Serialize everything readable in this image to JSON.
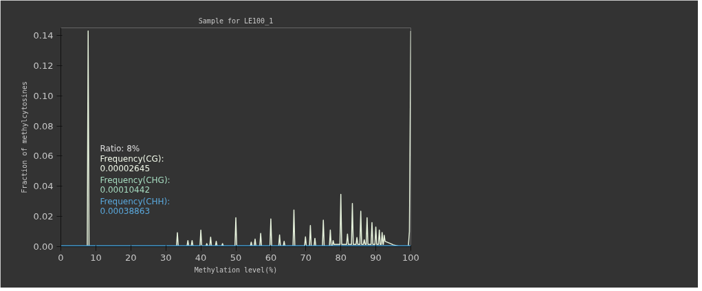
{
  "chart_data": {
    "type": "line",
    "title": "Sample for LE100_1",
    "xlabel": "Methylation level(%)",
    "ylabel": "Fraction of methylcytosines",
    "xlim": [
      0,
      100
    ],
    "ylim": [
      0,
      0.145
    ],
    "xticks": [
      0,
      10,
      20,
      30,
      40,
      50,
      60,
      70,
      80,
      90,
      100
    ],
    "yticks": [
      {
        "value": 0,
        "label": "0.00"
      },
      {
        "value": 0.02,
        "label": "0.02"
      },
      {
        "value": 0.04,
        "label": "0.04"
      },
      {
        "value": 0.06,
        "label": "0.06"
      },
      {
        "value": 0.08,
        "label": "0.08"
      },
      {
        "value": 0.1,
        "label": "0.10"
      },
      {
        "value": 0.12,
        "label": "0.12"
      },
      {
        "value": 0.14,
        "label": "0.14"
      }
    ],
    "grid": false,
    "marker": "none",
    "line_style": "solid",
    "series": [
      {
        "color": "#e6f2dc",
        "x": [
          0,
          7.55,
          7.8,
          8.05,
          33.05,
          33.3,
          33.55,
          36.05,
          36.3,
          36.55,
          37.25,
          37.5,
          37.75,
          39.75,
          40,
          40.25,
          41.45,
          41.7,
          41.95,
          42.55,
          42.8,
          43.05,
          44.15,
          44.4,
          44.65,
          45.95,
          46.2,
          46.45,
          49.75,
          50,
          50.25,
          54.15,
          54.4,
          54.65,
          55.25,
          55.5,
          55.75,
          56.85,
          57.1,
          57.35,
          59.75,
          60,
          60.25,
          62.25,
          62.5,
          62.75,
          63.55,
          63.8,
          64.05,
          66.35,
          66.6,
          66.85,
          69.65,
          69.9,
          70.15,
          71.05,
          71.3,
          71.55,
          72.35,
          72.6,
          72.85,
          74.75,
          75,
          75.25,
          76.75,
          77,
          77.25,
          77.55,
          77.8,
          78.05,
          79.75,
          80,
          80.25,
          81.65,
          81.9,
          82.15,
          83.05,
          83.3,
          83.55,
          84.35,
          84.6,
          84.85,
          85.45,
          85.7,
          85.95,
          86.45,
          86.7,
          86.95,
          87.25,
          87.5,
          87.75,
          88.65,
          88.9,
          89.15,
          89.75,
          90,
          90.25,
          90.75,
          91,
          91.25,
          91.55,
          91.8,
          92.05,
          92.15,
          92.4,
          92.65,
          94,
          95,
          96.5,
          99.3,
          99.6,
          100
        ],
        "values": [
          0.0003,
          0.0003,
          0.143,
          0.0003,
          0.0003,
          0.0092,
          0.0003,
          0.0003,
          0.004,
          0.0003,
          0.0003,
          0.004,
          0.0003,
          0.0003,
          0.0109,
          0.0003,
          0.0003,
          0.002,
          0.0003,
          0.0003,
          0.0063,
          0.0003,
          0.0003,
          0.0035,
          0.0003,
          0.0003,
          0.002,
          0.0003,
          0.0003,
          0.0192,
          0.0003,
          0.0003,
          0.003,
          0.0003,
          0.0003,
          0.005,
          0.0003,
          0.0003,
          0.0088,
          0.0003,
          0.0003,
          0.0183,
          0.0003,
          0.0003,
          0.0077,
          0.0003,
          0.0003,
          0.0035,
          0.0003,
          0.0003,
          0.0243,
          0.0003,
          0.0003,
          0.0065,
          0.0003,
          0.0003,
          0.014,
          0.0003,
          0.0003,
          0.0055,
          0.0003,
          0.0003,
          0.0175,
          0.0003,
          0.0003,
          0.011,
          0.0003,
          0.0003,
          0.004,
          0.0015,
          0.0015,
          0.0347,
          0.0015,
          0.0015,
          0.0083,
          0.0015,
          0.0015,
          0.0286,
          0.0015,
          0.0015,
          0.006,
          0.0015,
          0.0015,
          0.0235,
          0.0015,
          0.0015,
          0.0046,
          0.0015,
          0.0015,
          0.0192,
          0.0015,
          0.0015,
          0.016,
          0.0015,
          0.0015,
          0.013,
          0.0015,
          0.0015,
          0.011,
          0.0015,
          0.0015,
          0.0094,
          0.0015,
          0.0015,
          0.0075,
          0.0035,
          0.0022,
          0.0012,
          0.0003,
          0.0003,
          0.01,
          0.143
        ]
      },
      {
        "color": "#3f93c8",
        "x": [
          0,
          100
        ],
        "values": [
          0.0004,
          0.0004
        ]
      }
    ],
    "annotations": [
      "Ratio: 8%",
      "Frequency(CG):",
      "0.00002645",
      "Frequency(CHG):",
      "0.00010442",
      "Frequency(CHH):",
      "0.00038863"
    ]
  }
}
